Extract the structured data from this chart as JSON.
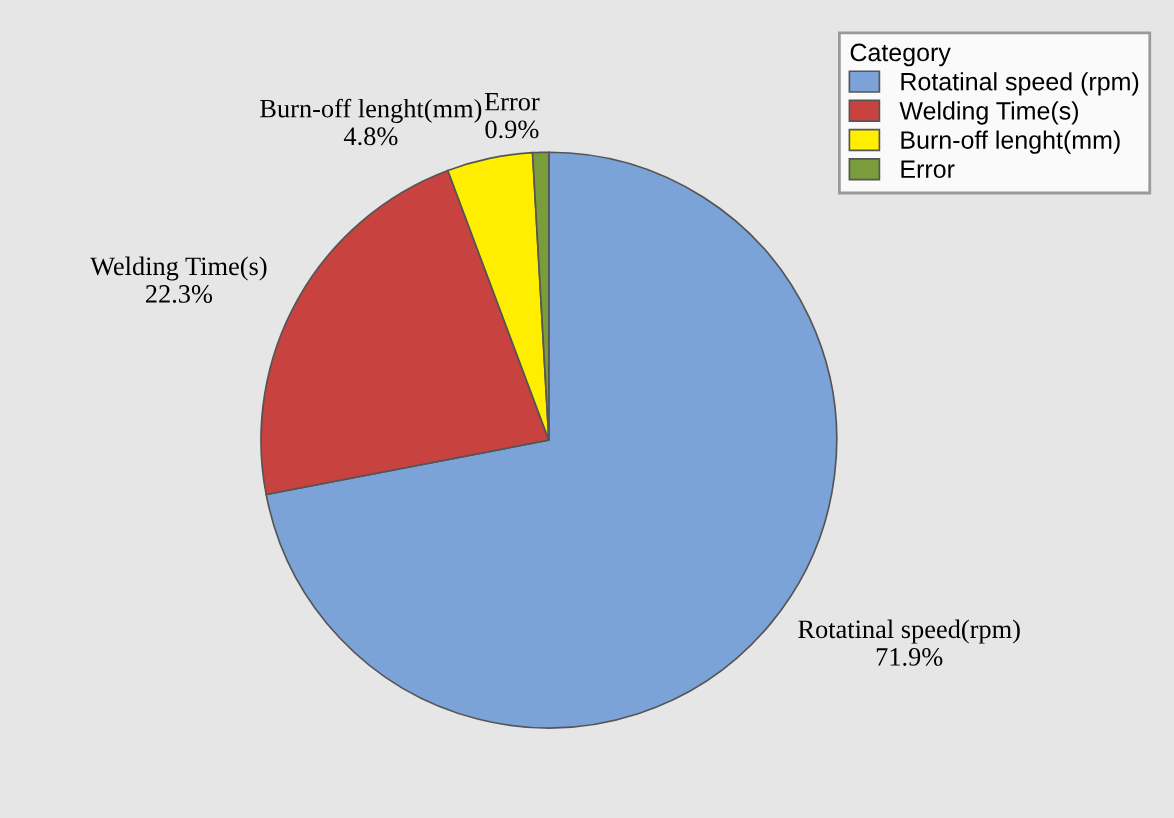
{
  "chart_data": {
    "type": "pie",
    "legend_title": "Category",
    "categories": [
      "Rotatinal speed (rpm)",
      "Welding Time(s)",
      "Burn-off lenght(mm)",
      "Error"
    ],
    "values": [
      71.9,
      22.3,
      4.8,
      0.9
    ],
    "colors": [
      "#7ba3d8",
      "#c8423f",
      "#ffee00",
      "#7a9c3a"
    ],
    "value_labels": [
      "Rotatinal speed(rpm)\n71.9%",
      "Welding Time(s)\n22.3%",
      "Burn-off lenght(mm)\n4.8%",
      "Error\n0.9%"
    ],
    "legend": "top right"
  }
}
